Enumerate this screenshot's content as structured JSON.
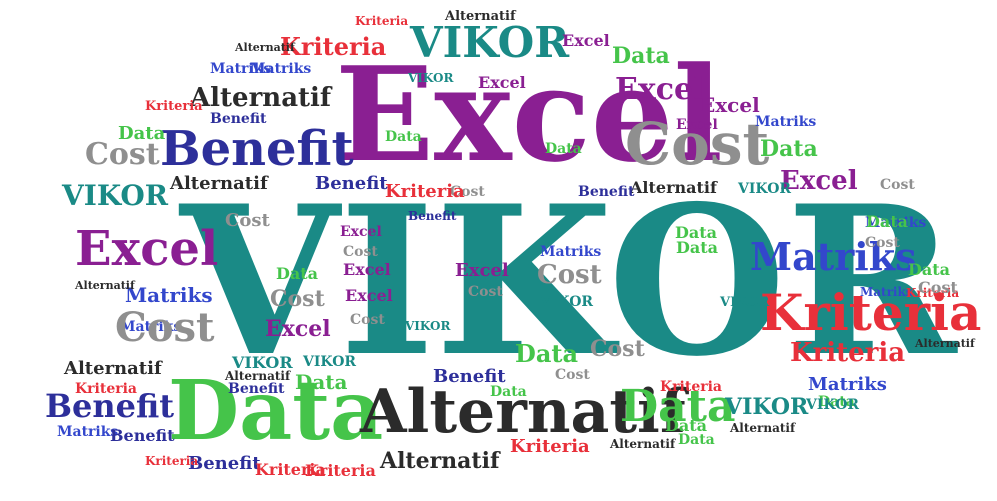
{
  "words": [
    {
      "text": "VIKOR",
      "color": "#1a8a86"
    },
    {
      "text": "Excel",
      "color": "#8a1f92"
    },
    {
      "text": "Data",
      "color": "#45c44a"
    },
    {
      "text": "Alternatif",
      "color": "#2b2b2b"
    },
    {
      "text": "Benefit",
      "color": "#2d2f9a"
    },
    {
      "text": "Cost",
      "color": "#8f8f8f"
    },
    {
      "text": "Kriteria",
      "color": "#e8303a"
    },
    {
      "text": "Matriks",
      "color": "#3347cc"
    },
    {
      "text": "VIKOR",
      "color": "#1a8a86"
    },
    {
      "text": "Excel",
      "color": "#8a1f92"
    },
    {
      "text": "Kriteria",
      "color": "#e8303a"
    },
    {
      "text": "Matriks",
      "color": "#3347cc"
    },
    {
      "text": "Cost",
      "color": "#8f8f8f"
    },
    {
      "text": "Benefit",
      "color": "#2d2f9a"
    },
    {
      "text": "Data",
      "color": "#45c44a"
    },
    {
      "text": "Alternatif",
      "color": "#2b2b2b"
    },
    {
      "text": "Excel",
      "color": "#8a1f92"
    },
    {
      "text": "Data",
      "color": "#45c44a"
    },
    {
      "text": "Kriteria",
      "color": "#e8303a"
    },
    {
      "text": "Alternatif",
      "color": "#2b2b2b"
    },
    {
      "text": "Matriks",
      "color": "#3347cc"
    },
    {
      "text": "Matriks",
      "color": "#3347cc"
    },
    {
      "text": "Kriteria",
      "color": "#e8303a"
    },
    {
      "text": "Alternatif",
      "color": "#2b2b2b"
    },
    {
      "text": "Excel",
      "color": "#8a1f92"
    },
    {
      "text": "VIKOR",
      "color": "#1a8a86"
    },
    {
      "text": "Benefit",
      "color": "#2d2f9a"
    },
    {
      "text": "Excel",
      "color": "#8a1f92"
    },
    {
      "text": "Data",
      "color": "#45c44a"
    },
    {
      "text": "Data",
      "color": "#45c44a"
    },
    {
      "text": "Excel",
      "color": "#8a1f92"
    },
    {
      "text": "Matriks",
      "color": "#3347cc"
    },
    {
      "text": "Data",
      "color": "#45c44a"
    },
    {
      "text": "Excel",
      "color": "#8a1f92"
    },
    {
      "text": "Matriks",
      "color": "#3347cc"
    },
    {
      "text": "Excel",
      "color": "#8a1f92"
    },
    {
      "text": "VIKOR",
      "color": "#1a8a86"
    },
    {
      "text": "Alternatif",
      "color": "#2b2b2b"
    },
    {
      "text": "Data",
      "color": "#45c44a"
    },
    {
      "text": "Kriteria",
      "color": "#e8303a"
    },
    {
      "text": "Benefit",
      "color": "#2d2f9a"
    },
    {
      "text": "Cost",
      "color": "#8f8f8f"
    },
    {
      "text": "Kriteria",
      "color": "#e8303a"
    },
    {
      "text": "Benefit",
      "color": "#2d2f9a"
    },
    {
      "text": "Alternatif",
      "color": "#2b2b2b"
    },
    {
      "text": "VIKOR",
      "color": "#1a8a86"
    },
    {
      "text": "Benefit",
      "color": "#2d2f9a"
    },
    {
      "text": "Cost",
      "color": "#8f8f8f"
    },
    {
      "text": "Excel",
      "color": "#8a1f92"
    },
    {
      "text": "Matriks",
      "color": "#3347cc"
    },
    {
      "text": "Data",
      "color": "#45c44a"
    },
    {
      "text": "VIKOR",
      "color": "#1a8a86"
    },
    {
      "text": "Excel",
      "color": "#8a1f92"
    },
    {
      "text": "Cost",
      "color": "#8f8f8f"
    },
    {
      "text": "Alternatif",
      "color": "#2b2b2b"
    },
    {
      "text": "Data",
      "color": "#45c44a"
    },
    {
      "text": "Matriks",
      "color": "#3347cc"
    },
    {
      "text": "Cost",
      "color": "#8f8f8f"
    },
    {
      "text": "Excel",
      "color": "#8a1f92"
    },
    {
      "text": "Cost",
      "color": "#8f8f8f"
    },
    {
      "text": "Excel",
      "color": "#8a1f92"
    },
    {
      "text": "Data",
      "color": "#45c44a"
    },
    {
      "text": "Cost",
      "color": "#8f8f8f"
    },
    {
      "text": "Excel",
      "color": "#8a1f92"
    },
    {
      "text": "Cost",
      "color": "#8f8f8f"
    },
    {
      "text": "VIKOR",
      "color": "#1a8a86"
    },
    {
      "text": "Excel",
      "color": "#8a1f92"
    },
    {
      "text": "Cost",
      "color": "#8f8f8f"
    },
    {
      "text": "Data",
      "color": "#45c44a"
    },
    {
      "text": "Data",
      "color": "#45c44a"
    },
    {
      "text": "Matriks",
      "color": "#3347cc"
    },
    {
      "text": "Kriteria",
      "color": "#e8303a"
    },
    {
      "text": "Alternatif",
      "color": "#2b2b2b"
    },
    {
      "text": "Cost",
      "color": "#8f8f8f"
    },
    {
      "text": "Data",
      "color": "#45c44a"
    },
    {
      "text": "Matriks",
      "color": "#3347cc"
    },
    {
      "text": "Data",
      "color": "#45c44a"
    },
    {
      "text": "Alternatif",
      "color": "#2b2b2b"
    },
    {
      "text": "Cost",
      "color": "#8f8f8f"
    },
    {
      "text": "Excel",
      "color": "#8a1f92"
    },
    {
      "text": "Cost",
      "color": "#8f8f8f"
    },
    {
      "text": "VIKOR",
      "color": "#1a8a86"
    },
    {
      "text": "Matriks",
      "color": "#3347cc"
    },
    {
      "text": "Benefit",
      "color": "#2d2f9a"
    },
    {
      "text": "Kriteria",
      "color": "#e8303a"
    },
    {
      "text": "Cost",
      "color": "#8f8f8f"
    },
    {
      "text": "Kriteria",
      "color": "#e8303a"
    },
    {
      "text": "Alternatif",
      "color": "#2b2b2b"
    },
    {
      "text": "VIKOR",
      "color": "#1a8a86"
    },
    {
      "text": "Data",
      "color": "#45c44a"
    },
    {
      "text": "Data",
      "color": "#45c44a"
    },
    {
      "text": "Benefit",
      "color": "#2d2f9a"
    },
    {
      "text": "Cost",
      "color": "#8f8f8f"
    },
    {
      "text": "Alternatif",
      "color": "#2b2b2b"
    },
    {
      "text": "Kriteria",
      "color": "#e8303a"
    },
    {
      "text": "Matriks",
      "color": "#3347cc"
    },
    {
      "text": "Benefit",
      "color": "#2d2f9a"
    },
    {
      "text": "Benefit",
      "color": "#2d2f9a"
    },
    {
      "text": "Kriteria",
      "color": "#e8303a"
    },
    {
      "text": "Alternatif",
      "color": "#2b2b2b"
    },
    {
      "text": "Data",
      "color": "#45c44a"
    },
    {
      "text": "Kriteria",
      "color": "#e8303a"
    },
    {
      "text": "VIKOR",
      "color": "#1a8a86"
    },
    {
      "text": "Matriks",
      "color": "#3347cc"
    },
    {
      "text": "VIKOR",
      "color": "#1a8a86"
    },
    {
      "text": "Alternatif",
      "color": "#2b2b2b"
    },
    {
      "text": "Data",
      "color": "#45c44a"
    },
    {
      "text": "Alternatif",
      "color": "#2b2b2b"
    },
    {
      "text": "VIKOR",
      "color": "#1a8a86"
    },
    {
      "text": "Kriteria",
      "color": "#e8303a"
    },
    {
      "text": "Alternatif",
      "color": "#2b2b2b"
    },
    {
      "text": "Benefit",
      "color": "#2d2f9a"
    },
    {
      "text": "Kriteria",
      "color": "#e8303a"
    },
    {
      "text": "VIKOR",
      "color": "#1a8a86"
    },
    {
      "text": "Matriks",
      "color": "#3347cc"
    },
    {
      "text": "VIKOR",
      "color": "#1a8a86"
    },
    {
      "text": "Kriteria",
      "color": "#e8303a"
    },
    {
      "text": "Alternatif",
      "color": "#2b2b2b"
    },
    {
      "text": "Alternatif",
      "color": "#2b2b2b"
    }
  ]
}
